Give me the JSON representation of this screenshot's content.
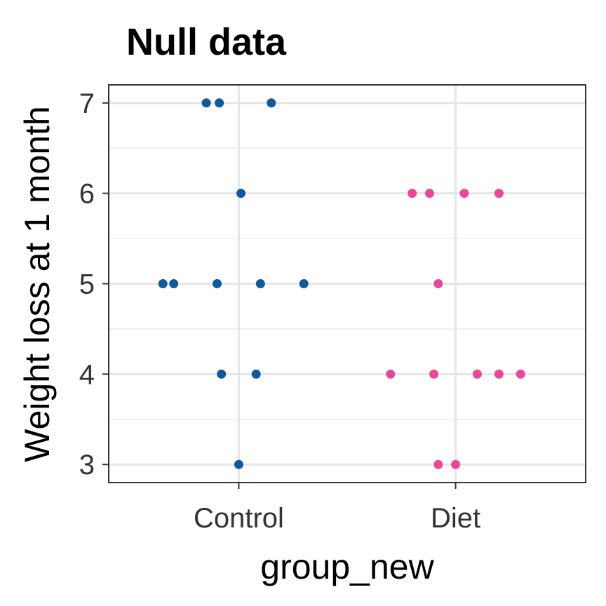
{
  "chart_data": {
    "type": "scatter",
    "title": "Null data",
    "xlabel": "group_new",
    "ylabel": "Weight loss at 1 month",
    "categories": [
      "Control",
      "Diet"
    ],
    "ylim": [
      2.8,
      7.2
    ],
    "yticks": [
      3,
      4,
      5,
      6,
      7
    ],
    "grid": true,
    "colors": {
      "Control": "#0f5a9c",
      "Diet": "#e8489a"
    },
    "series": [
      {
        "name": "Control",
        "points": [
          {
            "x": -0.15,
            "y": 7
          },
          {
            "x": -0.09,
            "y": 7
          },
          {
            "x": 0.15,
            "y": 7
          },
          {
            "x": 0.01,
            "y": 6
          },
          {
            "x": -0.35,
            "y": 5
          },
          {
            "x": -0.3,
            "y": 5
          },
          {
            "x": -0.1,
            "y": 5
          },
          {
            "x": 0.1,
            "y": 5
          },
          {
            "x": 0.3,
            "y": 5
          },
          {
            "x": -0.08,
            "y": 4
          },
          {
            "x": 0.08,
            "y": 4
          },
          {
            "x": 0.0,
            "y": 3
          }
        ]
      },
      {
        "name": "Diet",
        "points": [
          {
            "x": 0.8,
            "y": 6
          },
          {
            "x": 0.88,
            "y": 6
          },
          {
            "x": 1.04,
            "y": 6
          },
          {
            "x": 1.2,
            "y": 6
          },
          {
            "x": 0.92,
            "y": 5
          },
          {
            "x": 0.7,
            "y": 4
          },
          {
            "x": 0.9,
            "y": 4
          },
          {
            "x": 1.1,
            "y": 4
          },
          {
            "x": 1.2,
            "y": 4
          },
          {
            "x": 1.3,
            "y": 4
          },
          {
            "x": 0.92,
            "y": 3
          },
          {
            "x": 1.0,
            "y": 3
          }
        ]
      }
    ]
  }
}
